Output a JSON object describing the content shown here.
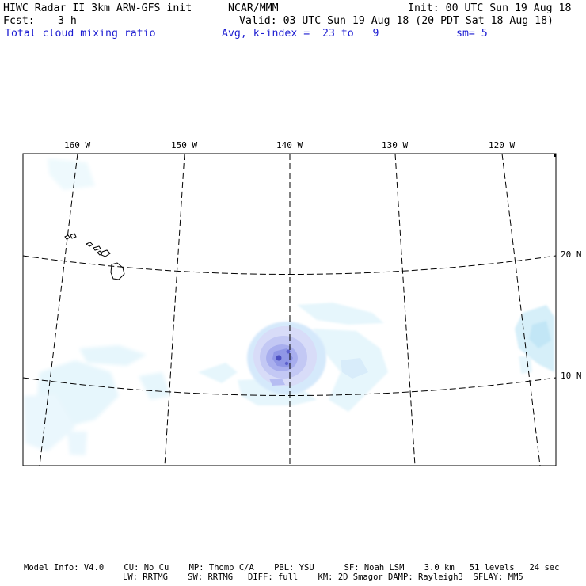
{
  "header": {
    "title": "HIWC Radar II 3km ARW-GFS init",
    "org": "NCAR/MMM",
    "init": "Init: 00 UTC Sun 19 Aug 18",
    "fcst_label": "Fcst:",
    "fcst_value": "3 h",
    "valid": "Valid: 03 UTC Sun 19 Aug 18 (20 PDT Sat 18 Aug 18)",
    "field": "Total cloud mixing ratio",
    "avg": "Avg, k-index =  23 to   9",
    "sm": "sm= 5"
  },
  "map": {
    "lon_labels": [
      "160 W",
      "150 W",
      "140 W",
      "130 W",
      "120 W"
    ],
    "lat_labels": [
      "20 N",
      "10 N"
    ],
    "grid_lines": "dashed",
    "cloud_colors": [
      "#e6f6fc",
      "#c9ecf8",
      "#d8dcf8",
      "#b6bdf2",
      "#8f96e6",
      "#5c60cc"
    ]
  },
  "footer": {
    "line1": "Model Info: V4.0    CU: No Cu    MP: Thomp C/A    PBL: YSU      SF: Noah LSM    3.0 km   51 levels   24 sec",
    "line2": "LW: RRTMG    SW: RRTMG   DIFF: full    KM: 2D Smagor DAMP: Rayleigh3  SFLAY: MM5"
  }
}
